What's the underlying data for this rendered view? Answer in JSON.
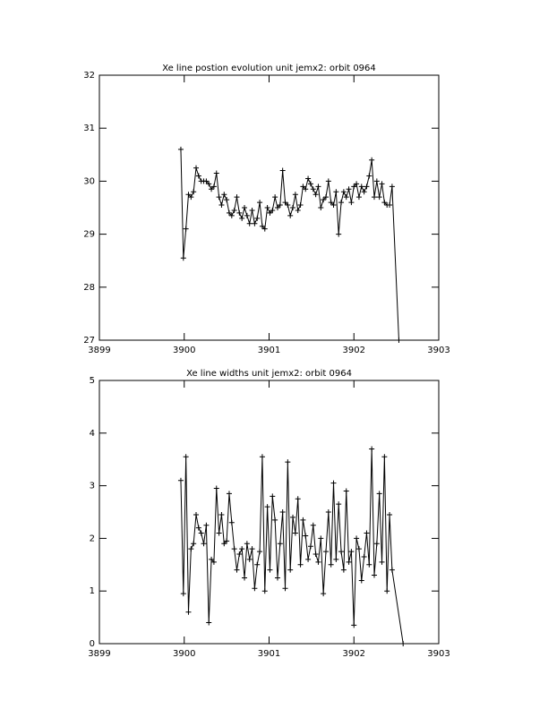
{
  "chart_data": [
    {
      "type": "line",
      "title": "Xe line postion evolution unit jemx2: orbit 0964",
      "color": "#000000",
      "markers": true,
      "xlim": [
        3899,
        3903
      ],
      "xticks": [
        3899,
        3900,
        3901,
        3902,
        3903
      ],
      "ylim": [
        27,
        32
      ],
      "yticks": [
        27,
        28,
        29,
        30,
        31,
        32
      ],
      "x": [
        3899.96,
        3899.99,
        3900.02,
        3900.05,
        3900.08,
        3900.11,
        3900.14,
        3900.17,
        3900.2,
        3900.23,
        3900.26,
        3900.29,
        3900.32,
        3900.35,
        3900.38,
        3900.41,
        3900.44,
        3900.47,
        3900.5,
        3900.53,
        3900.56,
        3900.59,
        3900.62,
        3900.65,
        3900.68,
        3900.71,
        3900.74,
        3900.77,
        3900.8,
        3900.83,
        3900.86,
        3900.89,
        3900.92,
        3900.95,
        3900.98,
        3901.01,
        3901.04,
        3901.07,
        3901.1,
        3901.13,
        3901.16,
        3901.19,
        3901.22,
        3901.25,
        3901.28,
        3901.31,
        3901.34,
        3901.37,
        3901.4,
        3901.43,
        3901.46,
        3901.49,
        3901.52,
        3901.55,
        3901.58,
        3901.61,
        3901.64,
        3901.67,
        3901.7,
        3901.73,
        3901.76,
        3901.79,
        3901.82,
        3901.85,
        3901.88,
        3901.91,
        3901.94,
        3901.97,
        3902.0,
        3902.03,
        3902.06,
        3902.09,
        3902.12,
        3902.15,
        3902.18,
        3902.21,
        3902.24,
        3902.27,
        3902.3,
        3902.33,
        3902.36,
        3902.39,
        3902.42,
        3902.45,
        3902.53
      ],
      "values": [
        30.6,
        28.55,
        29.1,
        29.75,
        29.7,
        29.8,
        30.25,
        30.1,
        30.0,
        30.0,
        30.0,
        29.95,
        29.85,
        29.9,
        30.15,
        29.7,
        29.55,
        29.75,
        29.65,
        29.4,
        29.35,
        29.45,
        29.7,
        29.4,
        29.3,
        29.5,
        29.35,
        29.2,
        29.45,
        29.2,
        29.3,
        29.6,
        29.15,
        29.1,
        29.5,
        29.4,
        29.45,
        29.7,
        29.5,
        29.55,
        30.2,
        29.6,
        29.55,
        29.35,
        29.5,
        29.75,
        29.45,
        29.55,
        29.9,
        29.85,
        30.05,
        29.95,
        29.85,
        29.75,
        29.9,
        29.5,
        29.65,
        29.7,
        30.0,
        29.6,
        29.55,
        29.8,
        29.0,
        29.6,
        29.8,
        29.7,
        29.85,
        29.6,
        29.9,
        29.95,
        29.7,
        29.9,
        29.8,
        29.9,
        30.1,
        30.4,
        29.7,
        30.0,
        29.7,
        29.95,
        29.6,
        29.55,
        29.55,
        29.9,
        27.0
      ]
    },
    {
      "type": "line",
      "title": "Xe line widths unit jemx2: orbit 0964",
      "color": "#000000",
      "markers": true,
      "xlim": [
        3899,
        3903
      ],
      "xticks": [
        3899,
        3900,
        3901,
        3902,
        3903
      ],
      "ylim": [
        0,
        5
      ],
      "yticks": [
        0,
        1,
        2,
        3,
        4,
        5
      ],
      "x": [
        3899.96,
        3899.99,
        3900.02,
        3900.05,
        3900.08,
        3900.11,
        3900.14,
        3900.17,
        3900.2,
        3900.23,
        3900.26,
        3900.29,
        3900.32,
        3900.35,
        3900.38,
        3900.41,
        3900.44,
        3900.47,
        3900.5,
        3900.53,
        3900.56,
        3900.59,
        3900.62,
        3900.65,
        3900.68,
        3900.71,
        3900.74,
        3900.77,
        3900.8,
        3900.83,
        3900.86,
        3900.89,
        3900.92,
        3900.95,
        3900.98,
        3901.01,
        3901.04,
        3901.07,
        3901.1,
        3901.13,
        3901.16,
        3901.19,
        3901.22,
        3901.25,
        3901.28,
        3901.31,
        3901.34,
        3901.37,
        3901.4,
        3901.43,
        3901.46,
        3901.49,
        3901.52,
        3901.55,
        3901.58,
        3901.61,
        3901.64,
        3901.67,
        3901.7,
        3901.73,
        3901.76,
        3901.79,
        3901.82,
        3901.85,
        3901.88,
        3901.91,
        3901.94,
        3901.97,
        3902.0,
        3902.03,
        3902.06,
        3902.09,
        3902.12,
        3902.15,
        3902.18,
        3902.21,
        3902.24,
        3902.27,
        3902.3,
        3902.33,
        3902.36,
        3902.39,
        3902.42,
        3902.45,
        3902.58
      ],
      "values": [
        3.1,
        0.95,
        3.55,
        0.6,
        1.8,
        1.9,
        2.45,
        2.2,
        2.1,
        1.9,
        2.25,
        0.4,
        1.6,
        1.55,
        2.95,
        2.1,
        2.45,
        1.9,
        1.95,
        2.85,
        2.3,
        1.8,
        1.4,
        1.7,
        1.8,
        1.25,
        1.9,
        1.6,
        1.8,
        1.05,
        1.5,
        1.75,
        3.55,
        1.0,
        2.6,
        1.4,
        2.8,
        2.35,
        1.25,
        1.9,
        2.5,
        1.05,
        3.45,
        1.4,
        2.4,
        2.1,
        2.75,
        1.5,
        2.35,
        2.05,
        1.6,
        1.85,
        2.25,
        1.7,
        1.55,
        2.0,
        0.95,
        1.75,
        2.5,
        1.5,
        3.05,
        1.6,
        2.65,
        1.75,
        1.4,
        2.9,
        1.55,
        1.75,
        0.35,
        2.0,
        1.8,
        1.2,
        1.65,
        2.1,
        1.5,
        3.7,
        1.3,
        1.9,
        2.85,
        1.55,
        3.55,
        1.0,
        2.45,
        1.4,
        0.0
      ]
    }
  ]
}
